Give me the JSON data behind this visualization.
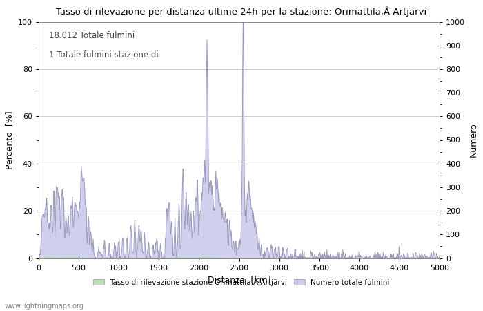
{
  "title": "Tasso di rilevazione per distanza ultime 24h per la stazione: Orimattila,Â Artjärvi",
  "xlabel": "Distanza  [km]",
  "ylabel_left": "Percento  [%]",
  "ylabel_right": "Numero",
  "annotation_line1": "18.012 Totale fulmini",
  "annotation_line2": "1 Totale fulmini stazione di",
  "legend_label_green": "Tasso di rilevazione stazione Orimattila,Â Artjärvi",
  "legend_label_blue": "Numero totale fulmini",
  "watermark": "www.lightningmaps.org",
  "xlim": [
    0,
    5000
  ],
  "ylim_left": [
    0,
    100
  ],
  "ylim_right": [
    0,
    1000
  ],
  "color_blue_line": "#9999bb",
  "color_blue_fill": "#d0d0ee",
  "color_green_fill": "#bbddbb",
  "background_color": "#ffffff",
  "grid_color": "#cccccc"
}
